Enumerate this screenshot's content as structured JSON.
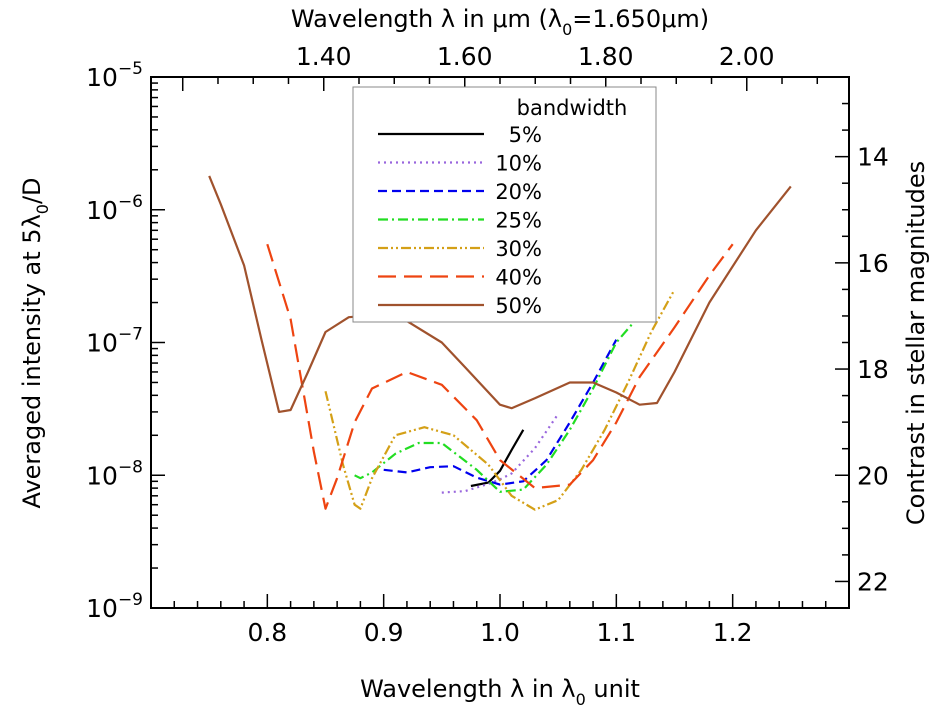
{
  "chart_data": {
    "type": "line",
    "xlabel": "Wavelength λ in λ",
    "xlabel_sub": "0",
    "xlabel_tail": " unit",
    "top_xlabel_a": "Wavelength λ in μm (λ",
    "top_xlabel_sub": "0",
    "top_xlabel_b": "=1.650μm)",
    "ylabel_a": "Averaged intensity at 5λ",
    "ylabel_sub": "0",
    "ylabel_b": "/D",
    "right_ylabel": "Contrast in stellar magnitudes",
    "xlim": [
      0.7,
      1.3
    ],
    "ylim": [
      1e-09,
      1e-05
    ],
    "yscale": "log",
    "x_ticks": [
      0.8,
      0.9,
      1.0,
      1.1,
      1.2
    ],
    "x_tick_labels": [
      "0.8",
      "0.9",
      "1.0",
      "1.1",
      "1.2"
    ],
    "y_ticks": [
      {
        "value": 1e-09,
        "base": "10",
        "exp": "−9"
      },
      {
        "value": 1e-08,
        "base": "10",
        "exp": "−8"
      },
      {
        "value": 1e-07,
        "base": "10",
        "exp": "−7"
      },
      {
        "value": 1e-06,
        "base": "10",
        "exp": "−6"
      },
      {
        "value": 1e-05,
        "base": "10",
        "exp": "−5"
      }
    ],
    "top_ticks": [
      1.4,
      1.6,
      1.8,
      2.0
    ],
    "top_tick_labels": [
      "1.40",
      "1.60",
      "1.80",
      "2.00"
    ],
    "top_scale_um_per_unit": 1.65,
    "right_ticks": [
      14,
      16,
      18,
      20,
      22
    ],
    "right_tick_labels": [
      "14",
      "16",
      "18",
      "20",
      "22"
    ],
    "magnitude_reference_intensity": 1.0,
    "legend": {
      "title": "bandwidth",
      "placement": "top-center"
    },
    "series": [
      {
        "name": "5%",
        "color": "#000000",
        "dash": "solid",
        "x": [
          0.975,
          0.99,
          1.0,
          1.01,
          1.02
        ],
        "y": [
          8.3e-09,
          8.8e-09,
          1.08e-08,
          1.55e-08,
          2.2e-08
        ]
      },
      {
        "name": "10%",
        "color": "#9966dd",
        "dash": "dot",
        "x": [
          0.95,
          0.97,
          0.99,
          1.0,
          1.01,
          1.03,
          1.05
        ],
        "y": [
          7.4e-09,
          7.6e-09,
          8.6e-09,
          9.3e-09,
          1.03e-08,
          1.6e-08,
          2.9e-08
        ]
      },
      {
        "name": "20%",
        "color": "#0000ee",
        "dash": "dash",
        "x": [
          0.9,
          0.92,
          0.94,
          0.96,
          0.98,
          1.0,
          1.02,
          1.04,
          1.06,
          1.08,
          1.1
        ],
        "y": [
          1.1e-08,
          1.05e-08,
          1.15e-08,
          1.17e-08,
          9.6e-09,
          8.5e-09,
          9e-09,
          1.3e-08,
          2.5e-08,
          5e-08,
          1.05e-07
        ]
      },
      {
        "name": "25%",
        "color": "#22dd22",
        "dash": "dashdot",
        "x": [
          0.875,
          0.88,
          0.89,
          0.91,
          0.93,
          0.95,
          0.98,
          1.0,
          1.02,
          1.04,
          1.06,
          1.08,
          1.1,
          1.12
        ],
        "y": [
          1e-08,
          9.5e-09,
          1.05e-08,
          1.45e-08,
          1.75e-08,
          1.75e-08,
          1.1e-08,
          7.5e-09,
          7.8e-09,
          1.2e-08,
          2.2e-08,
          4.5e-08,
          1e-07,
          1.6e-07
        ]
      },
      {
        "name": "30%",
        "color": "#d4a017",
        "dash": "dashdotdot",
        "x": [
          0.85,
          0.865,
          0.875,
          0.88,
          0.89,
          0.91,
          0.935,
          0.96,
          0.99,
          1.01,
          1.03,
          1.05,
          1.07,
          1.09,
          1.11,
          1.13,
          1.15
        ],
        "y": [
          4.3e-08,
          1.2e-08,
          6e-09,
          5.6e-09,
          9.5e-09,
          2e-08,
          2.3e-08,
          2e-08,
          1.2e-08,
          7e-09,
          5.5e-09,
          6.5e-09,
          1.1e-08,
          2.2e-08,
          5e-08,
          1.2e-07,
          2.5e-07
        ]
      },
      {
        "name": "40%",
        "color": "#ee4411",
        "dash": "longdash",
        "x": [
          0.8,
          0.82,
          0.84,
          0.85,
          0.86,
          0.875,
          0.89,
          0.92,
          0.95,
          0.98,
          1.0,
          1.03,
          1.06,
          1.08,
          1.1,
          1.12,
          1.15,
          1.18,
          1.2
        ],
        "y": [
          5.5e-07,
          1.5e-07,
          1.5e-08,
          5.6e-09,
          9.5e-09,
          2.5e-08,
          4.5e-08,
          6e-08,
          4.8e-08,
          2.6e-08,
          1.3e-08,
          8e-09,
          8.5e-09,
          1.3e-08,
          2.5e-08,
          5.5e-08,
          1.3e-07,
          3.2e-07,
          5.5e-07
        ]
      },
      {
        "name": "50%",
        "color": "#a0522d",
        "dash": "solid",
        "x": [
          0.75,
          0.76,
          0.78,
          0.795,
          0.81,
          0.82,
          0.835,
          0.85,
          0.87,
          0.89,
          0.92,
          0.95,
          0.97,
          1.0,
          1.01,
          1.03,
          1.06,
          1.08,
          1.1,
          1.12,
          1.135,
          1.15,
          1.18,
          1.22,
          1.25
        ],
        "y": [
          1.8e-06,
          1.1e-06,
          3.8e-07,
          1.05e-07,
          3e-08,
          3.1e-08,
          6e-08,
          1.2e-07,
          1.55e-07,
          1.6e-07,
          1.45e-07,
          1e-07,
          6.5e-08,
          3.4e-08,
          3.2e-08,
          3.8e-08,
          5e-08,
          5e-08,
          4.2e-08,
          3.4e-08,
          3.5e-08,
          6e-08,
          2e-07,
          7e-07,
          1.5e-06
        ]
      }
    ]
  }
}
